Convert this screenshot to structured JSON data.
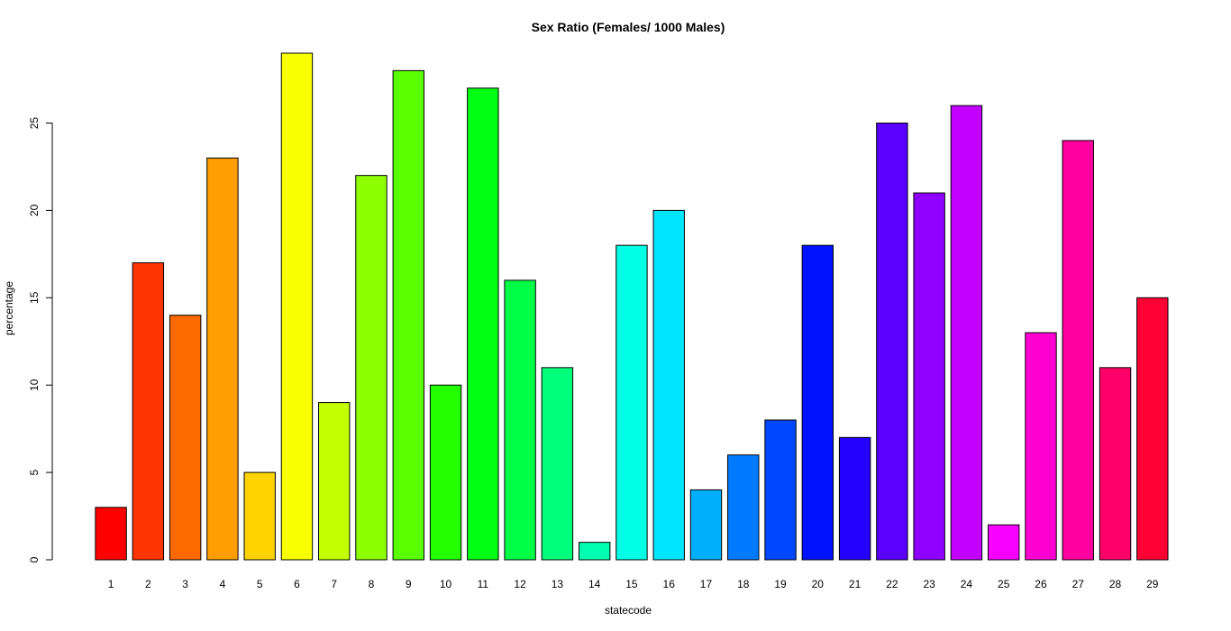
{
  "chart_data": {
    "type": "bar",
    "title": "Sex Ratio (Females/ 1000 Males)",
    "xlabel": "statecode",
    "ylabel": "percentage",
    "categories": [
      "1",
      "2",
      "3",
      "4",
      "5",
      "6",
      "7",
      "8",
      "9",
      "10",
      "11",
      "12",
      "13",
      "14",
      "15",
      "16",
      "17",
      "18",
      "19",
      "20",
      "21",
      "22",
      "23",
      "24",
      "25",
      "26",
      "27",
      "28",
      "29"
    ],
    "values": [
      3,
      17,
      14,
      23,
      5,
      29,
      9,
      22,
      28,
      10,
      27,
      16,
      11,
      1,
      18,
      20,
      4,
      6,
      8,
      18,
      7,
      25,
      21,
      26,
      2,
      13,
      24,
      11,
      15
    ],
    "colors": [
      "#FF0000",
      "#FF3500",
      "#FF6A00",
      "#FF9E00",
      "#FFD300",
      "#F7FF00",
      "#C3FF00",
      "#8EFF00",
      "#59FF00",
      "#24FF00",
      "#00FF12",
      "#00FF47",
      "#00FF7B",
      "#00FFB0",
      "#00FFE5",
      "#00E5FF",
      "#00B0FF",
      "#007BFF",
      "#0047FF",
      "#0012FF",
      "#2400FF",
      "#5900FF",
      "#8E00FF",
      "#C300FF",
      "#F700FF",
      "#FF00D3",
      "#FF009E",
      "#FF006A",
      "#FF0035"
    ],
    "yticks": [
      0,
      5,
      10,
      15,
      20,
      25
    ],
    "ylim": [
      0,
      29
    ],
    "grid": false,
    "legend": "none"
  }
}
